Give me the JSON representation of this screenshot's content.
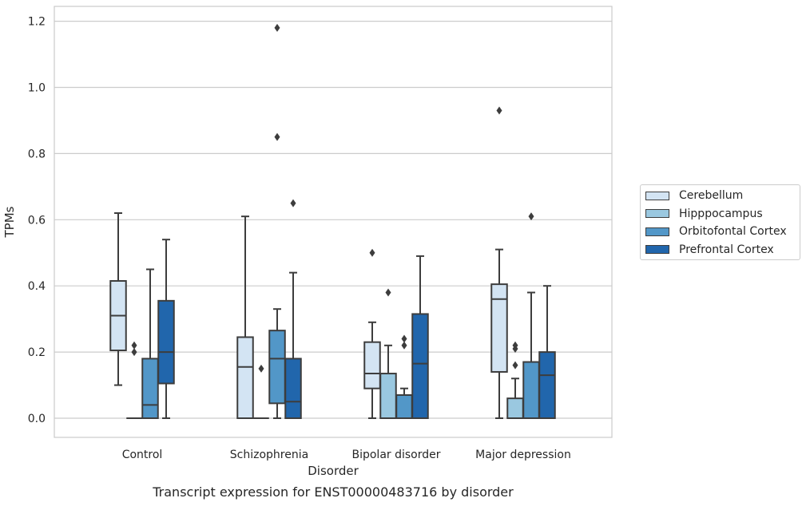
{
  "chart_data": {
    "type": "boxplot",
    "title": "Transcript expression for ENST00000483716 by disorder",
    "xlabel": "Disorder",
    "ylabel": "TPMs",
    "ylim": [
      -0.058,
      1.245
    ],
    "yticks": [
      "0.0",
      "0.2",
      "0.4",
      "0.6",
      "0.8",
      "1.0",
      "1.2"
    ],
    "grid": "horizontal",
    "legend_position": "right",
    "categories": [
      "Control",
      "Schizophrenia",
      "Bipolar disorder",
      "Major depression"
    ],
    "series": [
      {
        "name": "Cerebellum",
        "color": "#d3e4f3",
        "boxes": [
          {
            "whislo": 0.1,
            "q1": 0.205,
            "med": 0.31,
            "q3": 0.415,
            "whishi": 0.62,
            "fliers": []
          },
          {
            "whislo": 0.0,
            "q1": 0.0,
            "med": 0.155,
            "q3": 0.245,
            "whishi": 0.61,
            "fliers": []
          },
          {
            "whislo": 0.0,
            "q1": 0.09,
            "med": 0.135,
            "q3": 0.23,
            "whishi": 0.29,
            "fliers": [
              0.5
            ]
          },
          {
            "whislo": 0.0,
            "q1": 0.14,
            "med": 0.36,
            "q3": 0.405,
            "whishi": 0.51,
            "fliers": [
              0.93
            ]
          }
        ]
      },
      {
        "name": "Hipppocampus",
        "color": "#9ac8e0",
        "boxes": [
          {
            "whislo": 0.0,
            "q1": 0.0,
            "med": 0.0,
            "q3": 0.0,
            "whishi": 0.0,
            "fliers": [
              0.2,
              0.22
            ]
          },
          {
            "whislo": 0.0,
            "q1": 0.0,
            "med": 0.0,
            "q3": 0.0,
            "whishi": 0.0,
            "fliers": [
              0.15
            ]
          },
          {
            "whislo": 0.0,
            "q1": 0.0,
            "med": 0.0,
            "q3": 0.135,
            "whishi": 0.22,
            "fliers": [
              0.38
            ]
          },
          {
            "whislo": 0.0,
            "q1": 0.0,
            "med": 0.0,
            "q3": 0.06,
            "whishi": 0.12,
            "fliers": [
              0.16,
              0.21,
              0.22
            ]
          }
        ]
      },
      {
        "name": "Orbitofontal Cortex",
        "color": "#5297c8",
        "boxes": [
          {
            "whislo": 0.0,
            "q1": 0.0,
            "med": 0.04,
            "q3": 0.18,
            "whishi": 0.45,
            "fliers": []
          },
          {
            "whislo": 0.0,
            "q1": 0.045,
            "med": 0.18,
            "q3": 0.265,
            "whishi": 0.33,
            "fliers": [
              0.85,
              1.18
            ]
          },
          {
            "whislo": 0.0,
            "q1": 0.0,
            "med": 0.0,
            "q3": 0.07,
            "whishi": 0.09,
            "fliers": [
              0.22,
              0.24
            ]
          },
          {
            "whislo": 0.0,
            "q1": 0.0,
            "med": 0.0,
            "q3": 0.17,
            "whishi": 0.38,
            "fliers": [
              0.61
            ]
          }
        ]
      },
      {
        "name": "Prefrontal Cortex",
        "color": "#2166ac",
        "boxes": [
          {
            "whislo": 0.0,
            "q1": 0.105,
            "med": 0.2,
            "q3": 0.355,
            "whishi": 0.54,
            "fliers": []
          },
          {
            "whislo": 0.0,
            "q1": 0.0,
            "med": 0.05,
            "q3": 0.18,
            "whishi": 0.44,
            "fliers": [
              0.65
            ]
          },
          {
            "whislo": 0.0,
            "q1": 0.0,
            "med": 0.165,
            "q3": 0.315,
            "whishi": 0.49,
            "fliers": []
          },
          {
            "whislo": 0.0,
            "q1": 0.0,
            "med": 0.13,
            "q3": 0.2,
            "whishi": 0.4,
            "fliers": []
          }
        ]
      }
    ]
  }
}
